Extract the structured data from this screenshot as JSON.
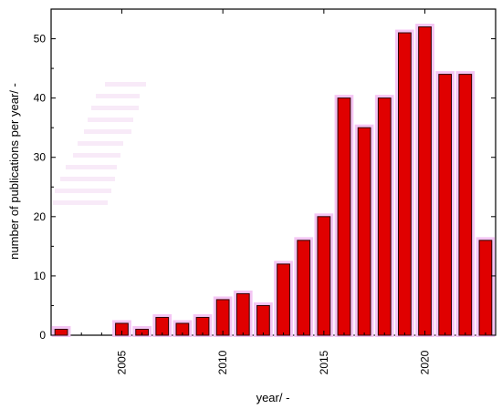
{
  "chart_data": {
    "type": "bar",
    "title": "",
    "xlabel": "year/ -",
    "ylabel": "number of publications per year/ -",
    "x": [
      2002,
      2003,
      2004,
      2005,
      2006,
      2007,
      2008,
      2009,
      2010,
      2011,
      2012,
      2013,
      2014,
      2015,
      2016,
      2017,
      2018,
      2019,
      2020,
      2021,
      2022,
      2023
    ],
    "values": [
      1,
      0,
      0,
      2,
      1,
      3,
      2,
      3,
      6,
      7,
      5,
      12,
      16,
      20,
      40,
      35,
      40,
      51,
      52,
      44,
      44,
      16
    ],
    "xlim": [
      2001.5,
      2023.5
    ],
    "ylim": [
      0,
      55
    ],
    "xticks": [
      2005,
      2010,
      2015,
      2020
    ],
    "yticks": [
      0,
      10,
      20,
      30,
      40,
      50
    ],
    "grid": false,
    "legend": "none",
    "colors": {
      "bar": "#e00000",
      "bar_edge": "#2b0000",
      "glow": "#f4c6f4"
    }
  }
}
